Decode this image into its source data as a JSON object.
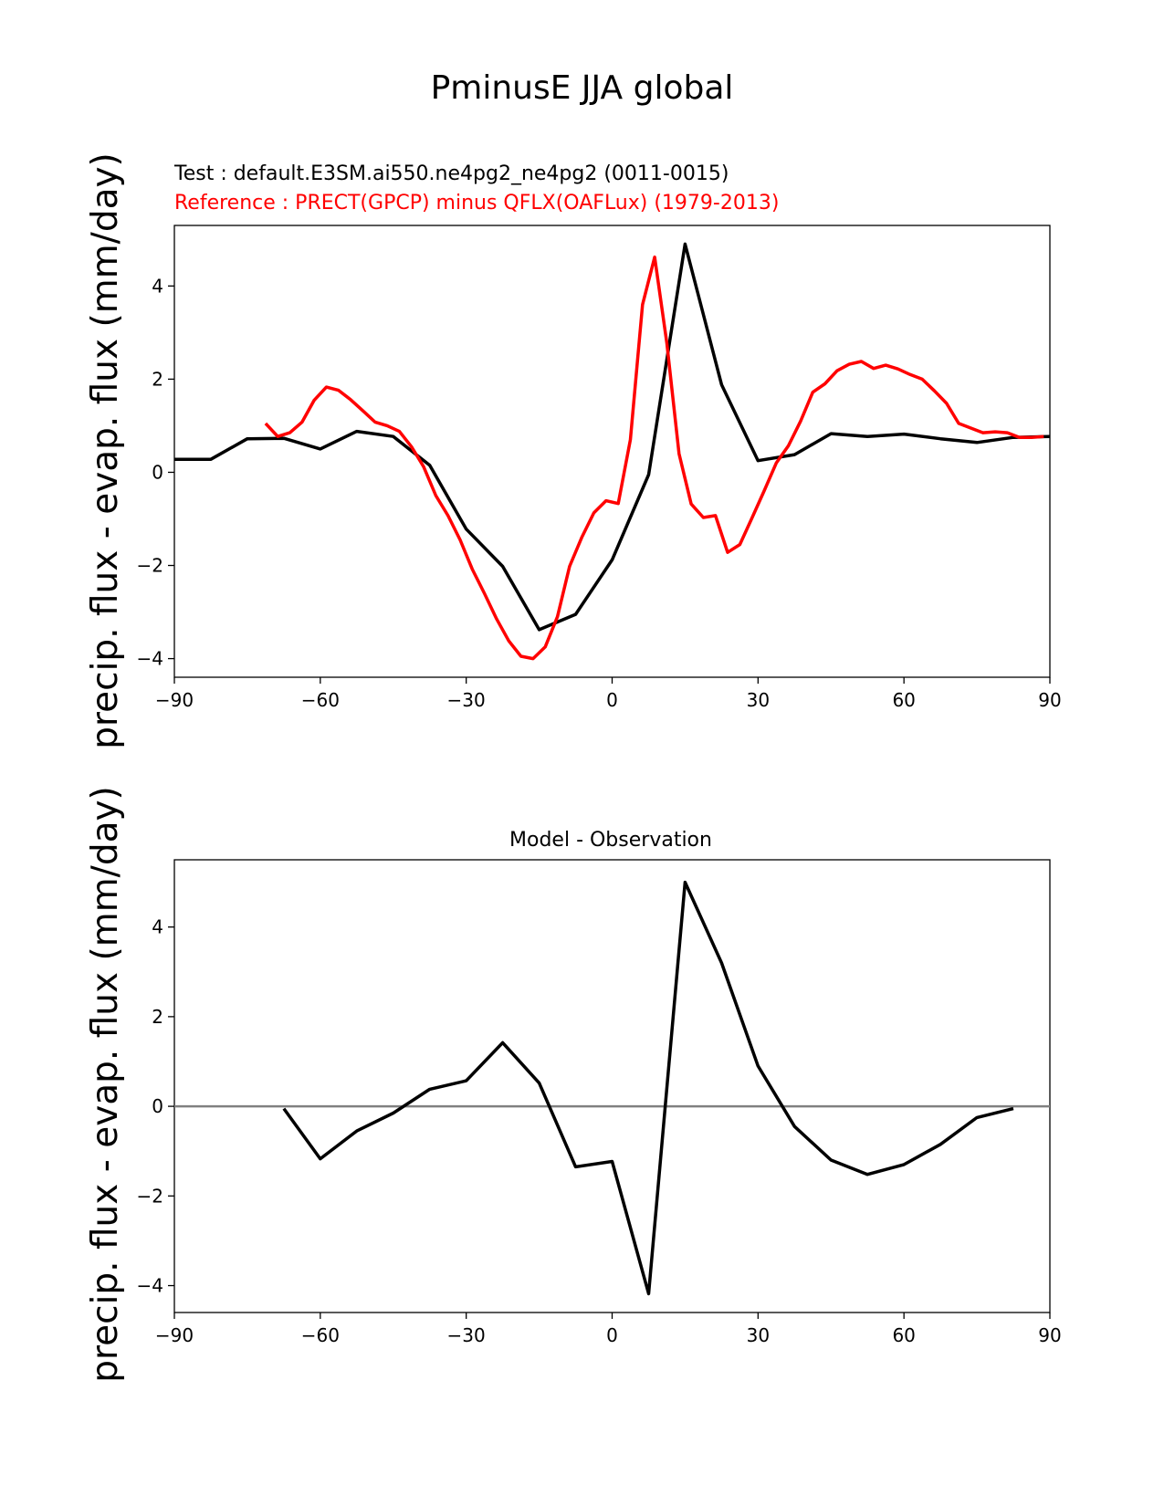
{
  "figure": {
    "title": "PminusE JJA global",
    "test_label": "Test : default.E3SM.ai550.ne4pg2_ne4pg2 (0011-0015)",
    "reference_label": "Reference : PRECT(GPCP) minus QFLX(OAFLux) (1979-2013)",
    "diff_title": "Model - Observation",
    "ylabel_top": "precip. flux - evap. flux (mm/day)",
    "ylabel_bottom": "precip. flux - evap. flux (mm/day)"
  },
  "colors": {
    "test": "#000000",
    "reference": "#ff0000",
    "zero_line": "#808080"
  },
  "chart_data": [
    {
      "type": "line",
      "title": "",
      "xlim": [
        -90,
        90
      ],
      "ylim": [
        -4.4,
        5.3
      ],
      "xticks": [
        -90,
        -60,
        -30,
        0,
        30,
        60,
        90
      ],
      "yticks": [
        -4,
        -2,
        0,
        2,
        4
      ],
      "xtick_labels": [
        "−90",
        "−60",
        "−30",
        "0",
        "30",
        "60",
        "90"
      ],
      "ytick_labels": [
        "−4",
        "−2",
        "0",
        "2",
        "4"
      ],
      "series": [
        {
          "name": "Test",
          "x": [
            -90,
            -82.5,
            -75,
            -67.5,
            -60,
            -52.5,
            -45,
            -37.5,
            -30,
            -22.5,
            -15,
            -7.5,
            0,
            7.5,
            15,
            22.5,
            30,
            37.5,
            45,
            52.5,
            60,
            67.5,
            75,
            82.5,
            90
          ],
          "y": [
            0.28,
            0.28,
            0.72,
            0.73,
            0.5,
            0.88,
            0.77,
            0.15,
            -1.22,
            -2.02,
            -3.38,
            -3.05,
            -1.88,
            -0.05,
            4.9,
            1.88,
            0.25,
            0.38,
            0.83,
            0.77,
            0.82,
            0.72,
            0.64,
            0.75,
            0.77
          ]
        },
        {
          "name": "Reference",
          "x": [
            -71.25,
            -68.75,
            -66.25,
            -63.75,
            -61.25,
            -58.75,
            -56.25,
            -53.75,
            -51.25,
            -48.75,
            -46.25,
            -43.75,
            -41.25,
            -38.75,
            -36.25,
            -33.75,
            -31.25,
            -28.75,
            -26.25,
            -23.75,
            -21.25,
            -18.75,
            -16.25,
            -13.75,
            -11.25,
            -8.75,
            -6.25,
            -3.75,
            -1.25,
            1.25,
            3.75,
            6.25,
            8.75,
            11.25,
            13.75,
            16.25,
            18.75,
            21.25,
            23.75,
            26.25,
            28.75,
            31.25,
            33.75,
            36.25,
            38.75,
            41.25,
            43.75,
            46.25,
            48.75,
            51.25,
            53.75,
            56.25,
            58.75,
            61.25,
            63.75,
            66.25,
            68.75,
            71.25,
            73.75,
            76.25,
            78.75,
            81.25,
            83.75,
            86.25,
            88.75
          ],
          "y": [
            1.05,
            0.77,
            0.85,
            1.08,
            1.55,
            1.83,
            1.76,
            1.56,
            1.32,
            1.08,
            1.0,
            0.88,
            0.55,
            0.12,
            -0.5,
            -0.93,
            -1.45,
            -2.08,
            -2.6,
            -3.15,
            -3.62,
            -3.95,
            -4.0,
            -3.75,
            -3.1,
            -2.02,
            -1.4,
            -0.87,
            -0.61,
            -0.67,
            0.7,
            3.6,
            4.62,
            2.78,
            0.4,
            -0.68,
            -0.97,
            -0.93,
            -1.72,
            -1.55,
            -0.98,
            -0.4,
            0.2,
            0.57,
            1.1,
            1.72,
            1.9,
            2.18,
            2.32,
            2.38,
            2.23,
            2.3,
            2.22,
            2.1,
            2.0,
            1.75,
            1.48,
            1.05,
            0.95,
            0.85,
            0.87,
            0.85,
            0.75,
            0.75,
            0.77
          ]
        }
      ]
    },
    {
      "type": "line",
      "title": "Model - Observation",
      "xlim": [
        -90,
        90
      ],
      "ylim": [
        -4.6,
        5.5
      ],
      "xticks": [
        -90,
        -60,
        -30,
        0,
        30,
        60,
        90
      ],
      "yticks": [
        -4,
        -2,
        0,
        2,
        4
      ],
      "xtick_labels": [
        "−90",
        "−60",
        "−30",
        "0",
        "30",
        "60",
        "90"
      ],
      "ytick_labels": [
        "−4",
        "−2",
        "0",
        "2",
        "4"
      ],
      "zero_line": true,
      "series": [
        {
          "name": "Model - Observation",
          "x": [
            -67.5,
            -60,
            -52.5,
            -45,
            -37.5,
            -30,
            -22.5,
            -15,
            -7.5,
            0,
            7.5,
            15,
            22.5,
            30,
            37.5,
            45,
            52.5,
            60,
            67.5,
            75,
            82.5
          ],
          "y": [
            -0.05,
            -1.17,
            -0.55,
            -0.15,
            0.38,
            0.57,
            1.42,
            0.52,
            -1.35,
            -1.23,
            -4.18,
            5.0,
            3.2,
            0.9,
            -0.45,
            -1.2,
            -1.52,
            -1.3,
            -0.85,
            -0.25,
            -0.05
          ]
        }
      ]
    }
  ]
}
